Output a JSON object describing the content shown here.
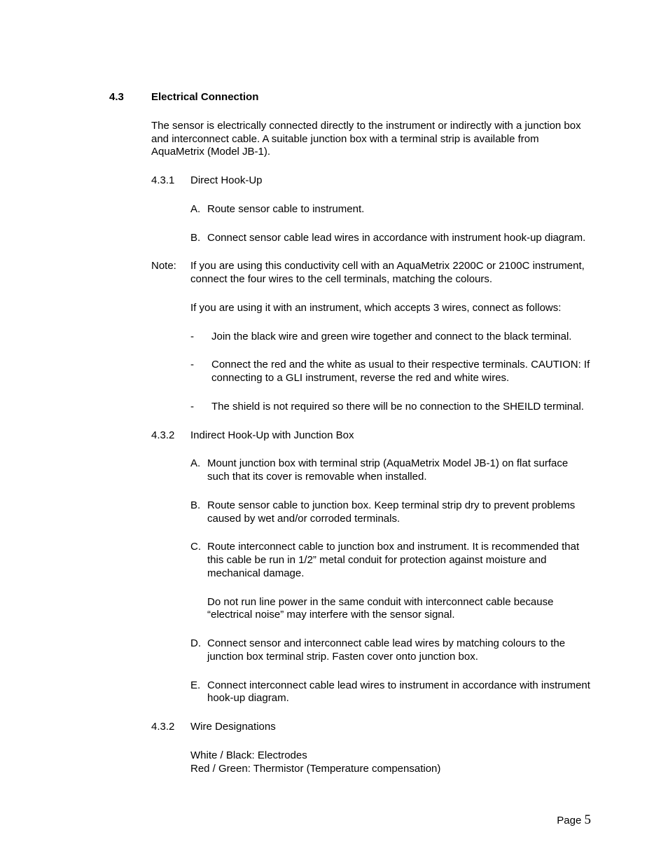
{
  "section": {
    "number": "4.3",
    "title": "Electrical Connection",
    "intro": "The sensor is electrically connected directly to the instrument or indirectly with a junction box and interconnect cable. A suitable junction box with a terminal strip is available from AquaMetrix (Model JB-1).",
    "sub1": {
      "number": "4.3.1",
      "title": "Direct Hook-Up",
      "items": [
        {
          "label": "A.",
          "text": "Route sensor cable to instrument."
        },
        {
          "label": "B.",
          "text": "Connect sensor cable lead wires in accordance with instrument hook-up diagram."
        }
      ]
    },
    "note": {
      "label": "Note:",
      "text1": "If you are using this conductivity cell with an AquaMetrix 2200C or 2100C instrument, connect the four wires to the cell terminals, matching the colours.",
      "text2": "If you are using it with an instrument, which accepts 3 wires, connect as follows:",
      "dashes": [
        "Join the black wire and green wire together and connect to the black terminal.",
        "Connect the red and the white as usual to their respective terminals. CAUTION: If connecting to a GLI instrument, reverse the red and white wires.",
        "The shield is not required so there will be no connection to the SHEILD terminal."
      ]
    },
    "sub2": {
      "number": "4.3.2",
      "title": "Indirect Hook-Up with Junction Box",
      "items": [
        {
          "label": "A.",
          "text": "Mount junction box with terminal strip (AquaMetrix Model JB-1) on flat surface such that its cover is removable when installed."
        },
        {
          "label": "B.",
          "text": "Route sensor cable to junction box. Keep terminal strip dry to prevent problems caused by wet and/or corroded terminals."
        },
        {
          "label": "C.",
          "text": "Route interconnect cable to junction box and instrument. It is recommended that this cable be run in 1/2” metal conduit for protection against moisture and mechanical damage.",
          "extra": "Do not run line power in the same conduit with interconnect cable because “electrical noise” may interfere with the sensor signal."
        },
        {
          "label": "D.",
          "text": "Connect sensor and interconnect cable lead wires by matching colours to the junction box terminal strip. Fasten cover onto junction box."
        },
        {
          "label": "E.",
          "text": "Connect interconnect cable lead wires to instrument in accordance with instrument hook-up diagram."
        }
      ]
    },
    "sub3": {
      "number": "4.3.2",
      "title": "Wire Designations",
      "lines": [
        "White / Black: Electrodes",
        "Red / Green: Thermistor (Temperature compensation)"
      ]
    }
  },
  "footer": {
    "label": "Page ",
    "num": "5"
  }
}
